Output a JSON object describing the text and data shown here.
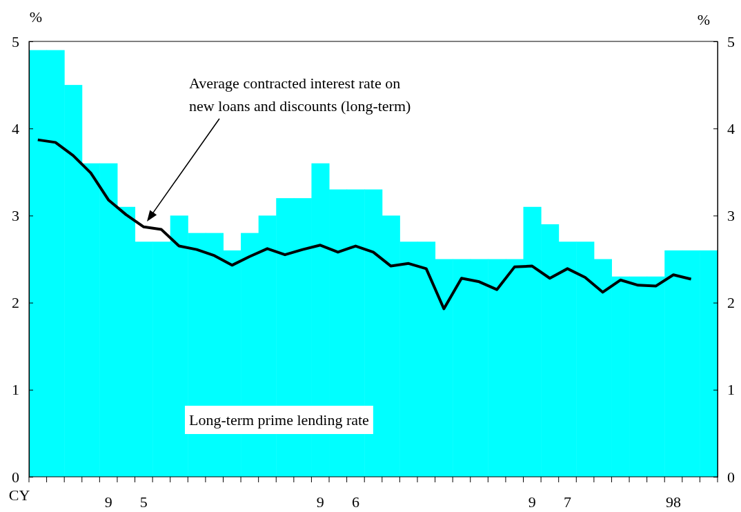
{
  "chart_data": {
    "type": "bar",
    "xlabel": "CY",
    "ylabel": "%",
    "y2label": "%",
    "categories": [
      null,
      null,
      null,
      null,
      "9",
      null,
      "5",
      null,
      null,
      null,
      null,
      null,
      null,
      null,
      null,
      null,
      "9",
      null,
      "6",
      null,
      null,
      null,
      null,
      null,
      null,
      null,
      null,
      null,
      "9",
      null,
      "7",
      null,
      null,
      null,
      null,
      null,
      "98",
      null,
      null
    ],
    "series": [
      {
        "name": "Long-term prime lending rate",
        "color": "#00ffff",
        "values": [
          4.9,
          4.9,
          4.5,
          3.6,
          3.6,
          3.1,
          2.7,
          2.7,
          3.0,
          2.8,
          2.8,
          2.6,
          2.8,
          3.0,
          3.2,
          3.2,
          3.6,
          3.3,
          3.3,
          3.3,
          3.0,
          2.7,
          2.7,
          2.5,
          2.5,
          2.5,
          2.5,
          2.5,
          3.1,
          2.9,
          2.7,
          2.7,
          2.5,
          2.3,
          2.3,
          2.3,
          2.6,
          2.6,
          2.6
        ]
      },
      {
        "type": "line",
        "color": "#000000",
        "values": [
          3.87,
          3.84,
          3.69,
          3.49,
          3.18,
          3.01,
          2.87,
          2.84,
          2.65,
          2.61,
          2.54,
          2.43,
          2.53,
          2.62,
          2.55,
          2.61,
          2.66,
          2.58,
          2.65,
          2.58,
          2.42,
          2.45,
          2.39,
          1.93,
          2.28,
          2.24,
          2.15,
          2.41,
          2.42,
          2.28,
          2.39,
          2.29,
          2.12,
          2.26,
          2.2,
          2.19,
          2.32,
          2.27,
          null
        ]
      }
    ],
    "ylim": [
      0,
      5
    ],
    "yticks": [
      0,
      1,
      2,
      3,
      4,
      5
    ],
    "y2lim": [
      0,
      5
    ],
    "y2ticks": [
      0,
      1,
      2,
      3,
      4,
      5
    ],
    "annotations": [
      "Average contracted interest rate on new loans and discounts (long-term)"
    ],
    "grid": false,
    "marker": "none",
    "line_style": "solid"
  }
}
